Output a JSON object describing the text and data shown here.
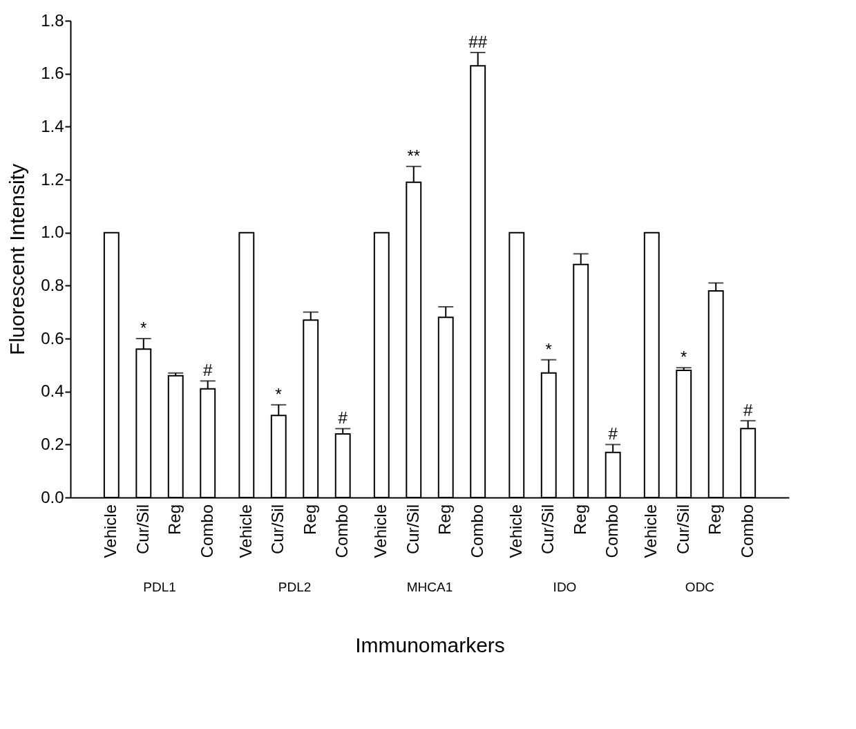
{
  "chart_data": {
    "type": "bar",
    "xlabel": "Immunomarkers",
    "ylabel": "Fluorescent Intensity",
    "categories": [
      "PDL1",
      "PDL2",
      "MHCA1",
      "IDO",
      "ODC"
    ],
    "series": [
      {
        "name": "Vehicle",
        "color": "#ffffff",
        "values": [
          1.0,
          1.0,
          1.0,
          1.0,
          1.0
        ],
        "errors": [
          null,
          null,
          null,
          null,
          null
        ]
      },
      {
        "name": "Cur/Sil",
        "color": "#ffffff",
        "values": [
          0.56,
          0.31,
          1.19,
          0.47,
          0.48
        ],
        "errors": [
          0.04,
          0.04,
          0.06,
          0.05,
          0.01
        ],
        "value_labels": [
          "*",
          "*",
          "**",
          "*",
          "*"
        ]
      },
      {
        "name": "Reg",
        "color": "#ffffff",
        "values": [
          0.46,
          0.67,
          0.68,
          0.88,
          0.78
        ],
        "errors": [
          0.01,
          0.03,
          0.04,
          0.04,
          0.03
        ]
      },
      {
        "name": "Combo",
        "color": "#ffffff",
        "values": [
          0.41,
          0.24,
          1.63,
          0.17,
          0.26
        ],
        "errors": [
          0.03,
          0.02,
          0.05,
          0.03,
          0.03
        ],
        "value_labels": [
          "#",
          "#",
          "##",
          "#",
          "#"
        ]
      }
    ],
    "ylim": [
      0,
      1.8
    ],
    "yticks": [
      {
        "value": 0,
        "label": "0.0"
      },
      {
        "value": 0.2,
        "label": "0.2"
      },
      {
        "value": 0.4,
        "label": "0.4"
      },
      {
        "value": 0.6,
        "label": "0.6"
      },
      {
        "value": 0.8,
        "label": "0.8"
      },
      {
        "value": 1.0,
        "label": "1.0"
      },
      {
        "value": 1.2,
        "label": "1.2"
      },
      {
        "value": 1.4,
        "label": "1.4"
      },
      {
        "value": 1.6,
        "label": "1.6"
      },
      {
        "value": 1.8,
        "label": "1.8"
      }
    ],
    "grid": false,
    "legend": false
  }
}
